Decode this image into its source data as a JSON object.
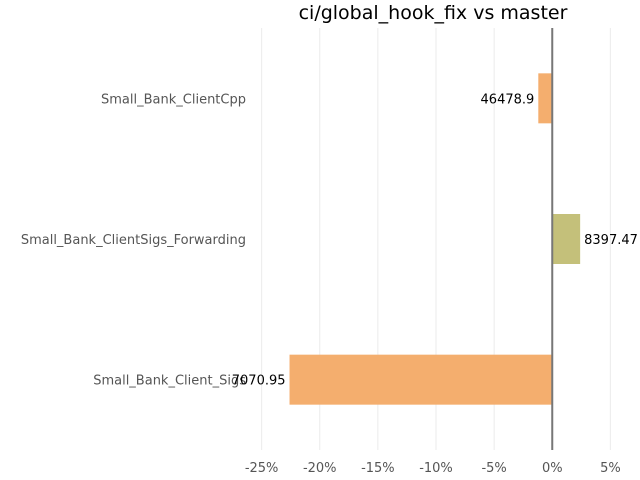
{
  "chart_data": {
    "type": "bar",
    "orientation": "horizontal",
    "title": "ci/global_hook_fix vs master",
    "xlabel": "",
    "ylabel": "",
    "categories": [
      "Small_Bank_ClientCpp",
      "Small_Bank_ClientSigs_Forwarding",
      "Small_Bank_Client_Sigs"
    ],
    "values": [
      -1.2,
      2.4,
      -22.6
    ],
    "data_labels": [
      "46478.9",
      "8397.47",
      "7070.95"
    ],
    "colors": [
      "#f4ae6e",
      "#c4c07a",
      "#f4ae6e"
    ],
    "xlim": [
      -26,
      6
    ],
    "xticks": [
      -25,
      -20,
      -15,
      -10,
      -5,
      0,
      5
    ],
    "xtick_labels": [
      "-25%",
      "-20%",
      "-15%",
      "-10%",
      "-5%",
      "0%",
      "5%"
    ],
    "grid": true,
    "legend": "none"
  }
}
